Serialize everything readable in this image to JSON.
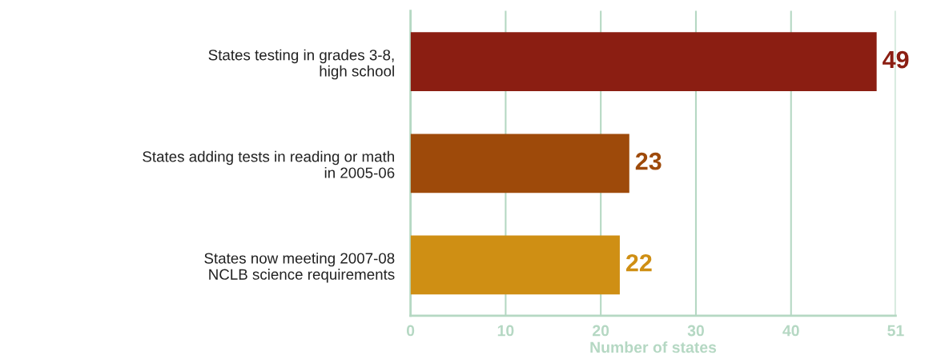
{
  "chart_data": {
    "type": "bar",
    "orientation": "horizontal",
    "categories": [
      "States testing in grades 3-8,\nhigh school",
      "States adding tests in reading or math\nin 2005-06",
      "States now meeting 2007-08\nNCLB science requirements"
    ],
    "values": [
      49,
      23,
      22
    ],
    "colors": [
      "#8b1e12",
      "#9e4a0a",
      "#cf8f14"
    ],
    "xlim": [
      0,
      51
    ],
    "xticks": [
      0,
      10,
      20,
      30,
      40,
      51
    ],
    "xlabel": "Number of states",
    "grid": "x",
    "data_labels": true
  }
}
